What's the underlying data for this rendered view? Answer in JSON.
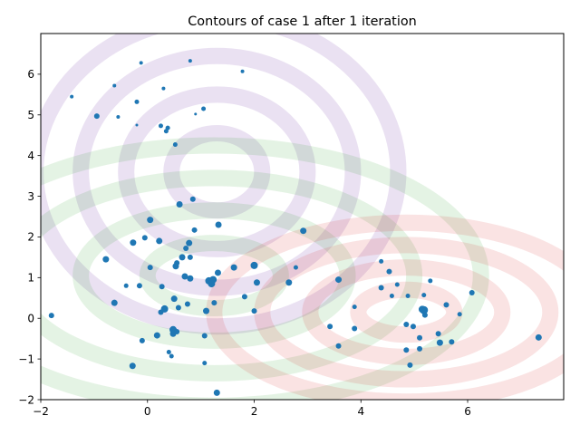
{
  "chart_data": {
    "type": "scatter",
    "title": "Contours of case 1 after 1 iteration",
    "xlabel": "",
    "ylabel": "",
    "xlim": [
      -2,
      7.8
    ],
    "ylim": [
      -2,
      7.0
    ],
    "xticks": [
      -2,
      0,
      2,
      4,
      6
    ],
    "yticks": [
      -2,
      -1,
      0,
      1,
      2,
      3,
      4,
      5,
      6
    ],
    "grid": false,
    "point_color": "#1f77b4",
    "contour_sets": [
      {
        "name": "",
        "color": "#9467bd",
        "center": [
          1.3,
          3.6
        ],
        "rx": [
          0.85,
          1.7,
          2.55,
          3.4
        ],
        "ry": [
          0.95,
          1.9,
          2.85,
          3.8
        ],
        "opacity": 0.2
      },
      {
        "name": "",
        "color": "#2ca02c",
        "center": [
          1.25,
          1.05
        ],
        "rx": [
          1.25,
          2.5,
          3.75,
          5.0
        ],
        "ry": [
          0.8,
          1.6,
          2.4,
          3.2
        ],
        "opacity": 0.13
      },
      {
        "name": "",
        "color": "#d62728",
        "center": [
          4.85,
          0.15
        ],
        "rx": [
          0.9,
          1.8,
          2.7,
          3.6
        ],
        "ry": [
          0.55,
          1.1,
          1.65,
          2.2
        ],
        "opacity": 0.13
      }
    ],
    "points": [
      [
        0.8,
        6.33,
        2
      ],
      [
        -0.12,
        6.28,
        2
      ],
      [
        1.78,
        6.07,
        2
      ],
      [
        -0.62,
        5.72,
        2
      ],
      [
        0.3,
        5.65,
        2
      ],
      [
        -1.42,
        5.45,
        2
      ],
      [
        -0.2,
        5.32,
        2.5
      ],
      [
        1.05,
        5.15,
        2.5
      ],
      [
        -0.95,
        4.97,
        3
      ],
      [
        -0.55,
        4.95,
        2
      ],
      [
        0.9,
        5.02,
        1.5
      ],
      [
        -0.2,
        4.75,
        1.5
      ],
      [
        0.25,
        4.73,
        2.5
      ],
      [
        0.38,
        4.68,
        2.5
      ],
      [
        0.35,
        4.6,
        2.5
      ],
      [
        0.52,
        4.27,
        2.5
      ],
      [
        0.85,
        2.93,
        3
      ],
      [
        0.6,
        2.8,
        3.5
      ],
      [
        1.33,
        2.3,
        3.5
      ],
      [
        0.05,
        2.42,
        3.5
      ],
      [
        0.88,
        2.17,
        3
      ],
      [
        2.92,
        2.15,
        3.5
      ],
      [
        -0.05,
        1.98,
        3
      ],
      [
        -0.27,
        1.86,
        3.5
      ],
      [
        0.22,
        1.9,
        3.5
      ],
      [
        0.78,
        1.85,
        3.5
      ],
      [
        0.72,
        1.72,
        3
      ],
      [
        0.65,
        1.5,
        3.5
      ],
      [
        0.8,
        1.5,
        3
      ],
      [
        -0.78,
        1.45,
        3.5
      ],
      [
        0.55,
        1.36,
        3
      ],
      [
        0.53,
        1.28,
        3.5
      ],
      [
        0.05,
        1.25,
        3
      ],
      [
        1.62,
        1.25,
        3.5
      ],
      [
        2.0,
        1.3,
        4
      ],
      [
        2.78,
        1.25,
        2.5
      ],
      [
        1.32,
        1.12,
        3.5
      ],
      [
        0.7,
        1.03,
        3.5
      ],
      [
        0.8,
        0.98,
        3.5
      ],
      [
        1.15,
        0.92,
        4
      ],
      [
        1.23,
        0.95,
        4
      ],
      [
        1.2,
        0.85,
        4
      ],
      [
        2.05,
        0.88,
        3.5
      ],
      [
        2.65,
        0.88,
        3.5
      ],
      [
        3.58,
        0.95,
        3.5
      ],
      [
        -0.4,
        0.8,
        2.5
      ],
      [
        -0.15,
        0.8,
        3
      ],
      [
        0.27,
        0.78,
        3
      ],
      [
        1.82,
        0.53,
        3
      ],
      [
        0.5,
        0.48,
        3.5
      ],
      [
        -0.62,
        0.38,
        3.5
      ],
      [
        0.75,
        0.35,
        3
      ],
      [
        1.25,
        0.38,
        3
      ],
      [
        0.58,
        0.26,
        3
      ],
      [
        0.32,
        0.23,
        4
      ],
      [
        0.25,
        0.15,
        3
      ],
      [
        1.1,
        0.18,
        3.5
      ],
      [
        2.0,
        0.18,
        3
      ],
      [
        0.48,
        -0.28,
        4
      ],
      [
        0.48,
        -0.38,
        3.5
      ],
      [
        0.55,
        -0.33,
        3
      ],
      [
        0.18,
        -0.42,
        3.5
      ],
      [
        1.07,
        -0.43,
        3
      ],
      [
        -0.1,
        -0.55,
        3
      ],
      [
        0.4,
        -0.83,
        2.5
      ],
      [
        0.45,
        -0.93,
        2.5
      ],
      [
        1.07,
        -1.1,
        2.5
      ],
      [
        -0.28,
        -1.17,
        3.5
      ],
      [
        1.3,
        -1.83,
        3.5
      ],
      [
        -1.8,
        0.07,
        3
      ],
      [
        3.88,
        0.28,
        2.5
      ],
      [
        3.42,
        -0.2,
        3
      ],
      [
        3.88,
        -0.25,
        3
      ],
      [
        3.58,
        -0.68,
        3
      ],
      [
        4.38,
        1.4,
        2.5
      ],
      [
        4.53,
        1.15,
        3
      ],
      [
        4.68,
        0.83,
        2.5
      ],
      [
        4.38,
        0.75,
        3
      ],
      [
        4.58,
        0.55,
        2.5
      ],
      [
        4.88,
        0.55,
        2.5
      ],
      [
        5.3,
        0.92,
        2.5
      ],
      [
        5.18,
        0.57,
        2.5
      ],
      [
        5.6,
        0.33,
        3
      ],
      [
        6.08,
        0.63,
        3
      ],
      [
        5.15,
        0.22,
        4
      ],
      [
        5.18,
        0.2,
        4.5
      ],
      [
        5.2,
        0.08,
        3
      ],
      [
        5.85,
        0.1,
        2.5
      ],
      [
        4.85,
        -0.15,
        3
      ],
      [
        4.98,
        -0.2,
        3
      ],
      [
        5.45,
        -0.38,
        3
      ],
      [
        5.1,
        -0.48,
        3
      ],
      [
        5.48,
        -0.6,
        3.5
      ],
      [
        5.7,
        -0.58,
        3
      ],
      [
        4.85,
        -0.78,
        3
      ],
      [
        5.1,
        -0.75,
        3
      ],
      [
        4.92,
        -1.15,
        3
      ],
      [
        7.33,
        -0.47,
        3.5
      ]
    ]
  }
}
